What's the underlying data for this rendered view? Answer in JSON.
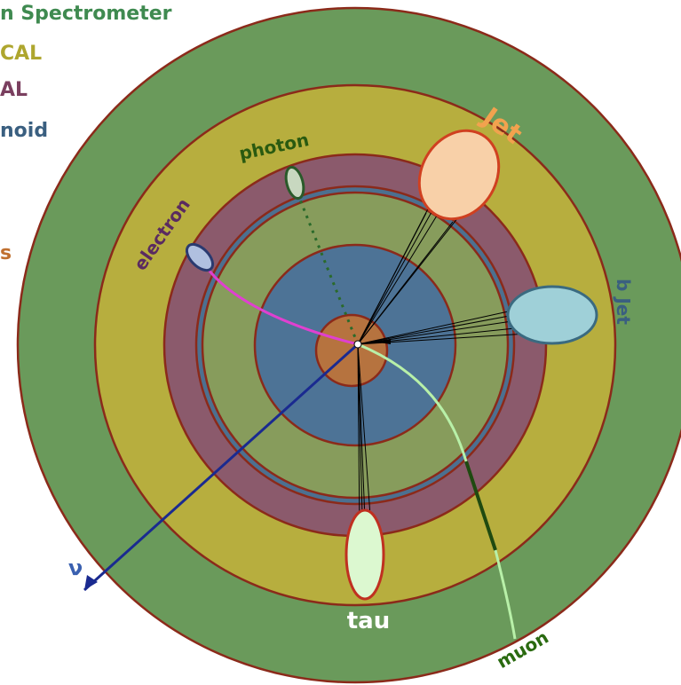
{
  "legend": {
    "muon_spectrometer": "n Spectrometer",
    "hcal": "CAL",
    "ecal": "AL",
    "solenoid": "noid",
    "tracker": "s"
  },
  "labels": {
    "jet": "Jet",
    "b_jet": "b Jet",
    "photon": "photon",
    "electron": "electron",
    "neutrino": "ν",
    "tau": "tau",
    "muon": "muon"
  }
}
